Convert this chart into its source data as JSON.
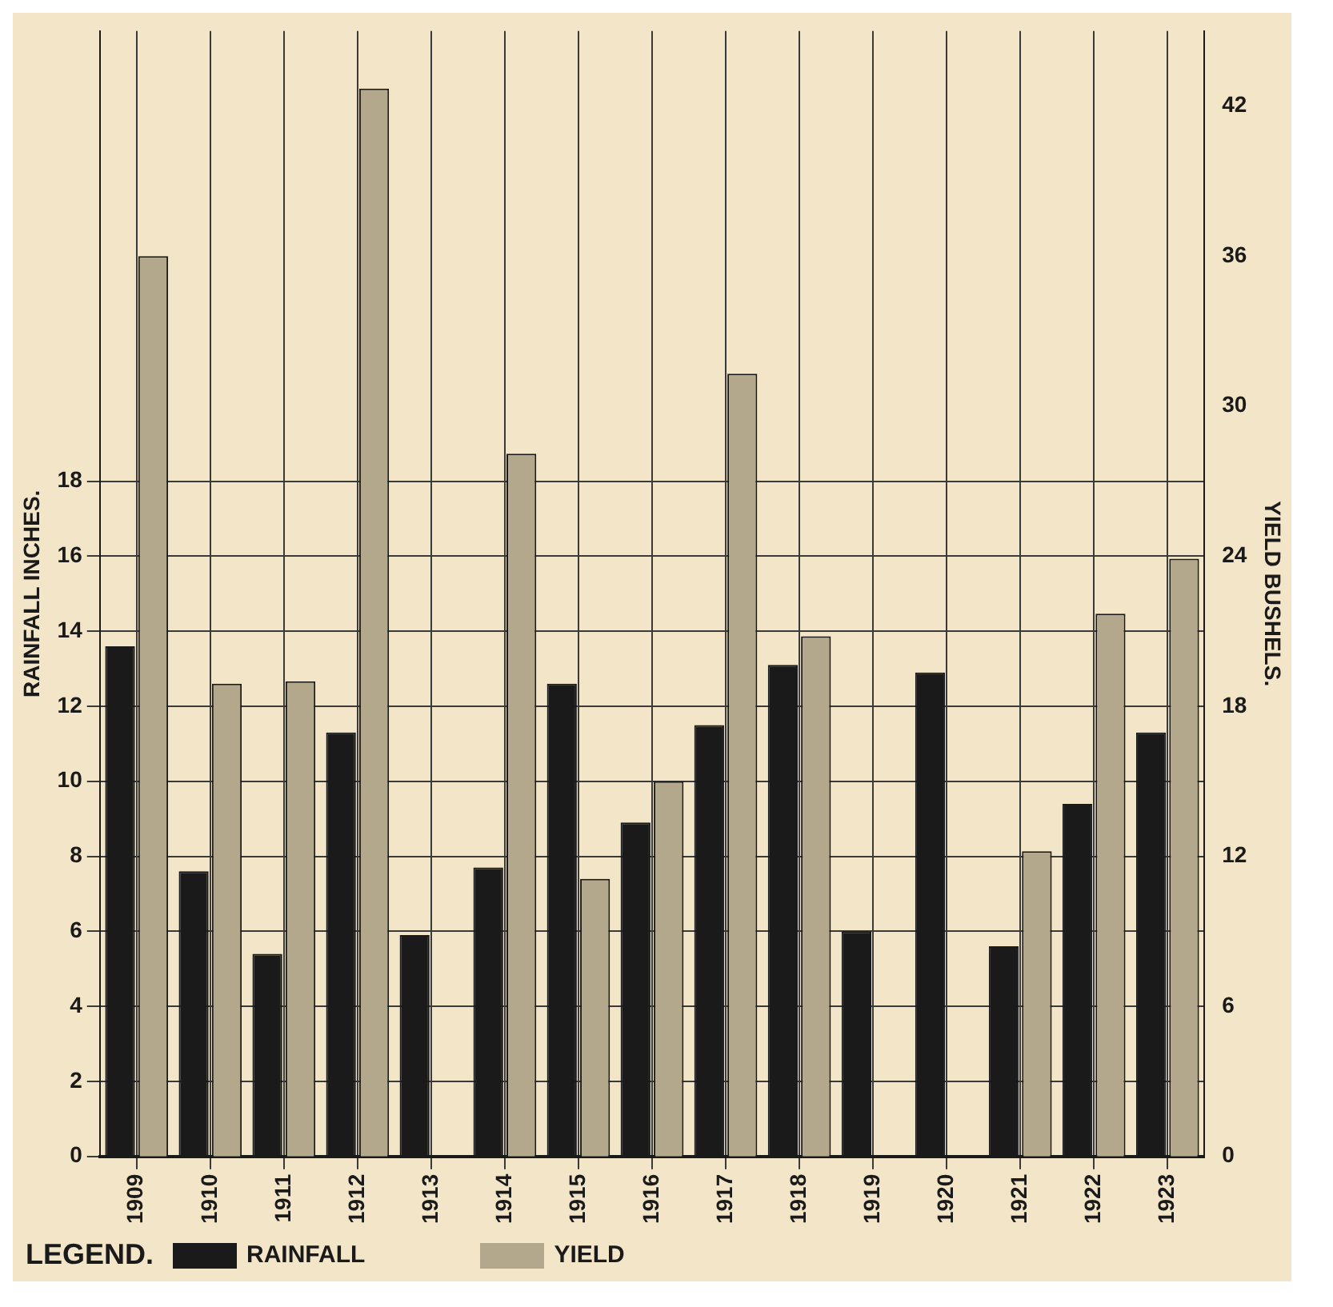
{
  "chart_data": {
    "type": "bar",
    "ylabel": "RAINFALL INCHES.",
    "y2label": "YIELD BUSHELS.",
    "legend_title": "LEGEND.",
    "categories": [
      "1909",
      "1910",
      "1911",
      "1912",
      "1913",
      "1914",
      "1915",
      "1916",
      "1917",
      "1918",
      "1919",
      "1920",
      "1921",
      "1922",
      "1923"
    ],
    "series": [
      {
        "name": "RAINFALL",
        "color": "#1a1a1a",
        "values": [
          13.6,
          7.6,
          5.4,
          11.3,
          5.9,
          7.7,
          12.6,
          8.9,
          11.5,
          13.1,
          6.0,
          12.9,
          5.6,
          9.4,
          11.3
        ]
      },
      {
        "name": "YIELD",
        "color": "#b3a88c",
        "axis": "y2",
        "values": [
          36.0,
          18.9,
          19.0,
          42.7,
          null,
          28.1,
          11.1,
          15.0,
          31.3,
          20.8,
          null,
          null,
          12.2,
          21.7,
          23.9
        ]
      }
    ],
    "ylim": [
      0,
      30
    ],
    "yticks": [
      0,
      2,
      4,
      6,
      8,
      10,
      12,
      14,
      16,
      18
    ],
    "y2lim": [
      0,
      45
    ],
    "y2ticks": [
      0,
      6,
      12,
      18,
      24,
      30,
      36,
      42
    ],
    "grid": true,
    "legend": "bottom"
  }
}
